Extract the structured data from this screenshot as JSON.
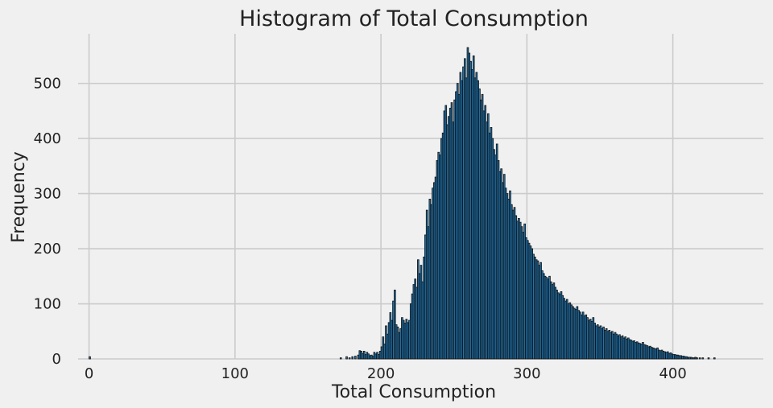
{
  "chart_data": {
    "type": "bar",
    "title": "Histogram of Total Consumption",
    "xlabel": "Total Consumption",
    "ylabel": "Frequency",
    "xlim": [
      -7.5,
      462
    ],
    "ylim": [
      0,
      590
    ],
    "grid": true,
    "bar_color": "#1f77b4",
    "edge_color": "#111111",
    "background": "#f0f0f0",
    "grid_color": "#cbcbcb",
    "xticks": [
      0,
      100,
      200,
      300,
      400
    ],
    "yticks": [
      0,
      100,
      200,
      300,
      400,
      500
    ],
    "bin_width": 1,
    "bin_start": 168,
    "bins": [
      [
        0,
        4
      ],
      [
        172,
        2
      ],
      [
        176,
        4
      ],
      [
        178,
        2
      ],
      [
        180,
        4
      ],
      [
        182,
        5
      ],
      [
        184,
        7
      ],
      [
        185,
        15
      ],
      [
        186,
        14
      ],
      [
        187,
        10
      ],
      [
        188,
        14
      ],
      [
        189,
        8
      ],
      [
        190,
        12
      ],
      [
        191,
        9
      ],
      [
        192,
        6
      ],
      [
        193,
        7
      ],
      [
        194,
        5
      ],
      [
        195,
        12
      ],
      [
        196,
        9
      ],
      [
        197,
        12
      ],
      [
        198,
        8
      ],
      [
        199,
        14
      ],
      [
        200,
        22
      ],
      [
        201,
        40
      ],
      [
        202,
        27
      ],
      [
        203,
        60
      ],
      [
        204,
        45
      ],
      [
        205,
        66
      ],
      [
        206,
        84
      ],
      [
        207,
        70
      ],
      [
        208,
        105
      ],
      [
        209,
        125
      ],
      [
        210,
        62
      ],
      [
        211,
        58
      ],
      [
        212,
        48
      ],
      [
        213,
        55
      ],
      [
        214,
        75
      ],
      [
        215,
        70
      ],
      [
        216,
        65
      ],
      [
        217,
        72
      ],
      [
        218,
        66
      ],
      [
        219,
        70
      ],
      [
        220,
        100
      ],
      [
        221,
        118
      ],
      [
        222,
        135
      ],
      [
        223,
        145
      ],
      [
        224,
        130
      ],
      [
        225,
        180
      ],
      [
        226,
        155
      ],
      [
        227,
        170
      ],
      [
        228,
        140
      ],
      [
        229,
        185
      ],
      [
        230,
        225
      ],
      [
        231,
        270
      ],
      [
        232,
        240
      ],
      [
        233,
        290
      ],
      [
        234,
        280
      ],
      [
        235,
        310
      ],
      [
        236,
        320
      ],
      [
        237,
        330
      ],
      [
        238,
        360
      ],
      [
        239,
        375
      ],
      [
        240,
        370
      ],
      [
        241,
        400
      ],
      [
        242,
        410
      ],
      [
        243,
        450
      ],
      [
        244,
        460
      ],
      [
        245,
        425
      ],
      [
        246,
        440
      ],
      [
        247,
        455
      ],
      [
        248,
        465
      ],
      [
        249,
        430
      ],
      [
        250,
        470
      ],
      [
        251,
        485
      ],
      [
        252,
        500
      ],
      [
        253,
        480
      ],
      [
        254,
        520
      ],
      [
        255,
        505
      ],
      [
        256,
        530
      ],
      [
        257,
        545
      ],
      [
        258,
        510
      ],
      [
        259,
        565
      ],
      [
        260,
        555
      ],
      [
        261,
        540
      ],
      [
        262,
        525
      ],
      [
        263,
        550
      ],
      [
        264,
        510
      ],
      [
        265,
        520
      ],
      [
        266,
        505
      ],
      [
        267,
        490
      ],
      [
        268,
        470
      ],
      [
        269,
        480
      ],
      [
        270,
        450
      ],
      [
        271,
        460
      ],
      [
        272,
        430
      ],
      [
        273,
        445
      ],
      [
        274,
        410
      ],
      [
        275,
        420
      ],
      [
        276,
        400
      ],
      [
        277,
        380
      ],
      [
        278,
        370
      ],
      [
        279,
        390
      ],
      [
        280,
        360
      ],
      [
        281,
        340
      ],
      [
        282,
        345
      ],
      [
        283,
        320
      ],
      [
        284,
        335
      ],
      [
        285,
        310
      ],
      [
        286,
        300
      ],
      [
        287,
        290
      ],
      [
        288,
        305
      ],
      [
        289,
        280
      ],
      [
        290,
        270
      ],
      [
        291,
        275
      ],
      [
        292,
        260
      ],
      [
        293,
        250
      ],
      [
        294,
        255
      ],
      [
        295,
        248
      ],
      [
        296,
        240
      ],
      [
        297,
        230
      ],
      [
        298,
        245
      ],
      [
        299,
        220
      ],
      [
        300,
        215
      ],
      [
        301,
        210
      ],
      [
        302,
        205
      ],
      [
        303,
        200
      ],
      [
        304,
        190
      ],
      [
        305,
        185
      ],
      [
        306,
        180
      ],
      [
        307,
        178
      ],
      [
        308,
        170
      ],
      [
        309,
        175
      ],
      [
        310,
        160
      ],
      [
        311,
        155
      ],
      [
        312,
        150
      ],
      [
        313,
        148
      ],
      [
        314,
        145
      ],
      [
        315,
        150
      ],
      [
        316,
        140
      ],
      [
        317,
        135
      ],
      [
        318,
        138
      ],
      [
        319,
        130
      ],
      [
        320,
        125
      ],
      [
        321,
        120
      ],
      [
        322,
        118
      ],
      [
        323,
        122
      ],
      [
        324,
        115
      ],
      [
        325,
        110
      ],
      [
        326,
        105
      ],
      [
        327,
        108
      ],
      [
        328,
        100
      ],
      [
        329,
        102
      ],
      [
        330,
        98
      ],
      [
        331,
        95
      ],
      [
        332,
        92
      ],
      [
        333,
        90
      ],
      [
        334,
        95
      ],
      [
        335,
        88
      ],
      [
        336,
        85
      ],
      [
        337,
        80
      ],
      [
        338,
        85
      ],
      [
        339,
        78
      ],
      [
        340,
        80
      ],
      [
        341,
        75
      ],
      [
        342,
        70
      ],
      [
        343,
        72
      ],
      [
        344,
        68
      ],
      [
        345,
        75
      ],
      [
        346,
        65
      ],
      [
        347,
        60
      ],
      [
        348,
        62
      ],
      [
        349,
        58
      ],
      [
        350,
        60
      ],
      [
        351,
        55
      ],
      [
        352,
        58
      ],
      [
        353,
        52
      ],
      [
        354,
        55
      ],
      [
        355,
        50
      ],
      [
        356,
        52
      ],
      [
        357,
        48
      ],
      [
        358,
        50
      ],
      [
        359,
        45
      ],
      [
        360,
        48
      ],
      [
        361,
        45
      ],
      [
        362,
        42
      ],
      [
        363,
        44
      ],
      [
        364,
        40
      ],
      [
        365,
        42
      ],
      [
        366,
        38
      ],
      [
        367,
        40
      ],
      [
        368,
        36
      ],
      [
        369,
        38
      ],
      [
        370,
        35
      ],
      [
        371,
        34
      ],
      [
        372,
        32
      ],
      [
        373,
        33
      ],
      [
        374,
        30
      ],
      [
        375,
        31
      ],
      [
        376,
        29
      ],
      [
        377,
        28
      ],
      [
        378,
        27
      ],
      [
        379,
        30
      ],
      [
        380,
        26
      ],
      [
        381,
        25
      ],
      [
        382,
        24
      ],
      [
        383,
        22
      ],
      [
        384,
        23
      ],
      [
        385,
        21
      ],
      [
        386,
        20
      ],
      [
        387,
        19
      ],
      [
        388,
        18
      ],
      [
        389,
        20
      ],
      [
        390,
        16
      ],
      [
        391,
        15
      ],
      [
        392,
        16
      ],
      [
        393,
        14
      ],
      [
        394,
        13
      ],
      [
        395,
        12
      ],
      [
        396,
        13
      ],
      [
        397,
        10
      ],
      [
        398,
        11
      ],
      [
        399,
        9
      ],
      [
        400,
        8
      ],
      [
        401,
        8
      ],
      [
        402,
        7
      ],
      [
        403,
        7
      ],
      [
        404,
        6
      ],
      [
        405,
        6
      ],
      [
        406,
        5
      ],
      [
        407,
        5
      ],
      [
        408,
        4
      ],
      [
        409,
        4
      ],
      [
        410,
        3
      ],
      [
        411,
        3
      ],
      [
        412,
        3
      ],
      [
        413,
        2
      ],
      [
        414,
        2
      ],
      [
        415,
        3
      ],
      [
        416,
        2
      ],
      [
        418,
        2
      ],
      [
        420,
        2
      ],
      [
        424,
        2
      ],
      [
        428,
        2
      ]
    ]
  }
}
